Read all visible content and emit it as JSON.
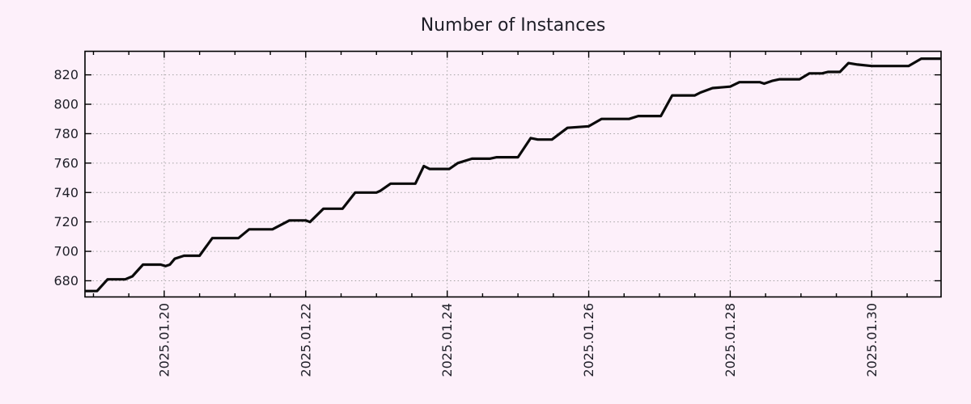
{
  "colors": {
    "background": "#fdf0fa",
    "axis": "#000000",
    "grid": "#a3a3a3",
    "series_line": "#0b0b0b",
    "text": "#1f1f28"
  },
  "chart_data": {
    "type": "line",
    "title": "Number of Instances",
    "legend": "none",
    "grid": "dotted",
    "x_axis": {
      "unit": "date",
      "tick_labels": [
        "2025.01.20",
        "2025.01.22",
        "2025.01.24",
        "2025.01.26",
        "2025.01.28",
        "2025.01.30"
      ],
      "tick_values_day_of_jan_2025": [
        20,
        22,
        24,
        26,
        28,
        30
      ],
      "minor_tick_step_days": 0.5,
      "range_day_of_jan_2025": [
        18.88,
        30.98
      ]
    },
    "y_axis": {
      "unit": "instances",
      "tick_values": [
        680,
        700,
        720,
        740,
        760,
        780,
        800,
        820
      ],
      "range": [
        669,
        836
      ]
    },
    "series": [
      {
        "name": "Number of Instances",
        "color": "#0b0b0b",
        "points_day_value": [
          [
            18.88,
            673
          ],
          [
            19.05,
            673
          ],
          [
            19.2,
            681
          ],
          [
            19.45,
            681
          ],
          [
            19.55,
            683
          ],
          [
            19.7,
            691
          ],
          [
            19.95,
            691
          ],
          [
            20.02,
            690
          ],
          [
            20.08,
            691
          ],
          [
            20.15,
            695
          ],
          [
            20.28,
            697
          ],
          [
            20.5,
            697
          ],
          [
            20.68,
            709
          ],
          [
            21.05,
            709
          ],
          [
            21.2,
            715
          ],
          [
            21.53,
            715
          ],
          [
            21.77,
            721
          ],
          [
            22.0,
            721
          ],
          [
            22.06,
            720
          ],
          [
            22.25,
            729
          ],
          [
            22.52,
            729
          ],
          [
            22.7,
            740
          ],
          [
            23.0,
            740
          ],
          [
            23.05,
            741
          ],
          [
            23.2,
            746
          ],
          [
            23.55,
            746
          ],
          [
            23.67,
            758
          ],
          [
            23.75,
            756
          ],
          [
            24.03,
            756
          ],
          [
            24.15,
            760
          ],
          [
            24.35,
            763
          ],
          [
            24.6,
            763
          ],
          [
            24.7,
            764
          ],
          [
            25.0,
            764
          ],
          [
            25.18,
            777
          ],
          [
            25.28,
            776
          ],
          [
            25.48,
            776
          ],
          [
            25.7,
            784
          ],
          [
            26.0,
            785
          ],
          [
            26.18,
            790
          ],
          [
            26.57,
            790
          ],
          [
            26.7,
            792
          ],
          [
            27.02,
            792
          ],
          [
            27.18,
            806
          ],
          [
            27.5,
            806
          ],
          [
            27.58,
            808
          ],
          [
            27.75,
            811
          ],
          [
            28.0,
            812
          ],
          [
            28.13,
            815
          ],
          [
            28.42,
            815
          ],
          [
            28.48,
            814
          ],
          [
            28.6,
            816
          ],
          [
            28.7,
            817
          ],
          [
            28.98,
            817
          ],
          [
            29.12,
            821
          ],
          [
            29.3,
            821
          ],
          [
            29.38,
            822
          ],
          [
            29.55,
            822
          ],
          [
            29.67,
            828
          ],
          [
            29.8,
            827
          ],
          [
            30.0,
            826
          ],
          [
            30.52,
            826
          ],
          [
            30.7,
            831
          ],
          [
            30.98,
            831
          ]
        ]
      }
    ]
  }
}
